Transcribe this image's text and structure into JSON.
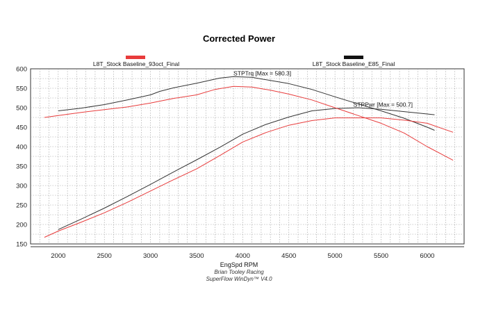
{
  "chart_data": {
    "type": "line",
    "title": "Corrected Power",
    "xlabel": "EngSpd RPM",
    "ylabel": "",
    "xlim": [
      1700,
      6400
    ],
    "ylim": [
      150,
      600
    ],
    "xticks": [
      2000,
      2500,
      3000,
      3500,
      4000,
      4500,
      5000,
      5500,
      6000
    ],
    "yticks": [
      150,
      200,
      250,
      300,
      350,
      400,
      450,
      500,
      550,
      600
    ],
    "grid": true,
    "legend": [
      {
        "name": "L8T_Stock Baseline_93oct_Final",
        "color": "#e83b3b"
      },
      {
        "name": "L8T_Stock Baseline_E85_Final",
        "color": "#111111"
      }
    ],
    "annotations": [
      {
        "text": "STPTrq [Max = 580.3]",
        "x": 3900,
        "y": 583
      },
      {
        "text": "STPPwr [Max = 500.7]",
        "x": 5200,
        "y": 503
      }
    ],
    "footer": [
      "Brian Tooley Racing",
      "SuperFlow WinDyn™ V4.0"
    ],
    "series": [
      {
        "name": "E85 Torque",
        "color": "#333333",
        "x": [
          2000,
          2250,
          2500,
          2750,
          3000,
          3100,
          3250,
          3500,
          3750,
          3900,
          4100,
          4300,
          4500,
          4750,
          5000,
          5250,
          5500,
          5750,
          6000,
          6080
        ],
        "y": [
          492,
          499,
          508,
          520,
          533,
          542,
          551,
          563,
          576,
          580,
          578,
          570,
          562,
          547,
          528,
          510,
          492,
          473,
          450,
          442
        ]
      },
      {
        "name": "E85 Power",
        "color": "#333333",
        "x": [
          2000,
          2250,
          2500,
          2750,
          3000,
          3250,
          3500,
          3750,
          4000,
          4250,
          4500,
          4750,
          5000,
          5250,
          5500,
          5750,
          6000,
          6080
        ],
        "y": [
          187,
          214,
          242,
          272,
          303,
          335,
          366,
          398,
          432,
          457,
          476,
          492,
          498,
          500,
          496,
          490,
          484,
          482
        ]
      },
      {
        "name": "93oct Torque",
        "color": "#e83b3b",
        "x": [
          1850,
          2000,
          2250,
          2500,
          2750,
          3000,
          3250,
          3500,
          3700,
          3900,
          4100,
          4300,
          4500,
          4750,
          5000,
          5250,
          5500,
          5750,
          6000,
          6280
        ],
        "y": [
          475,
          480,
          488,
          495,
          502,
          512,
          524,
          533,
          547,
          555,
          553,
          545,
          535,
          520,
          500,
          480,
          460,
          435,
          400,
          365
        ]
      },
      {
        "name": "93oct Power",
        "color": "#e83b3b",
        "x": [
          1850,
          2000,
          2250,
          2500,
          2750,
          3000,
          3250,
          3500,
          3750,
          4000,
          4250,
          4500,
          4750,
          5000,
          5250,
          5500,
          5750,
          6000,
          6280
        ],
        "y": [
          167,
          183,
          206,
          230,
          257,
          286,
          315,
          343,
          377,
          412,
          436,
          455,
          467,
          474,
          474,
          474,
          468,
          460,
          437
        ]
      }
    ]
  }
}
